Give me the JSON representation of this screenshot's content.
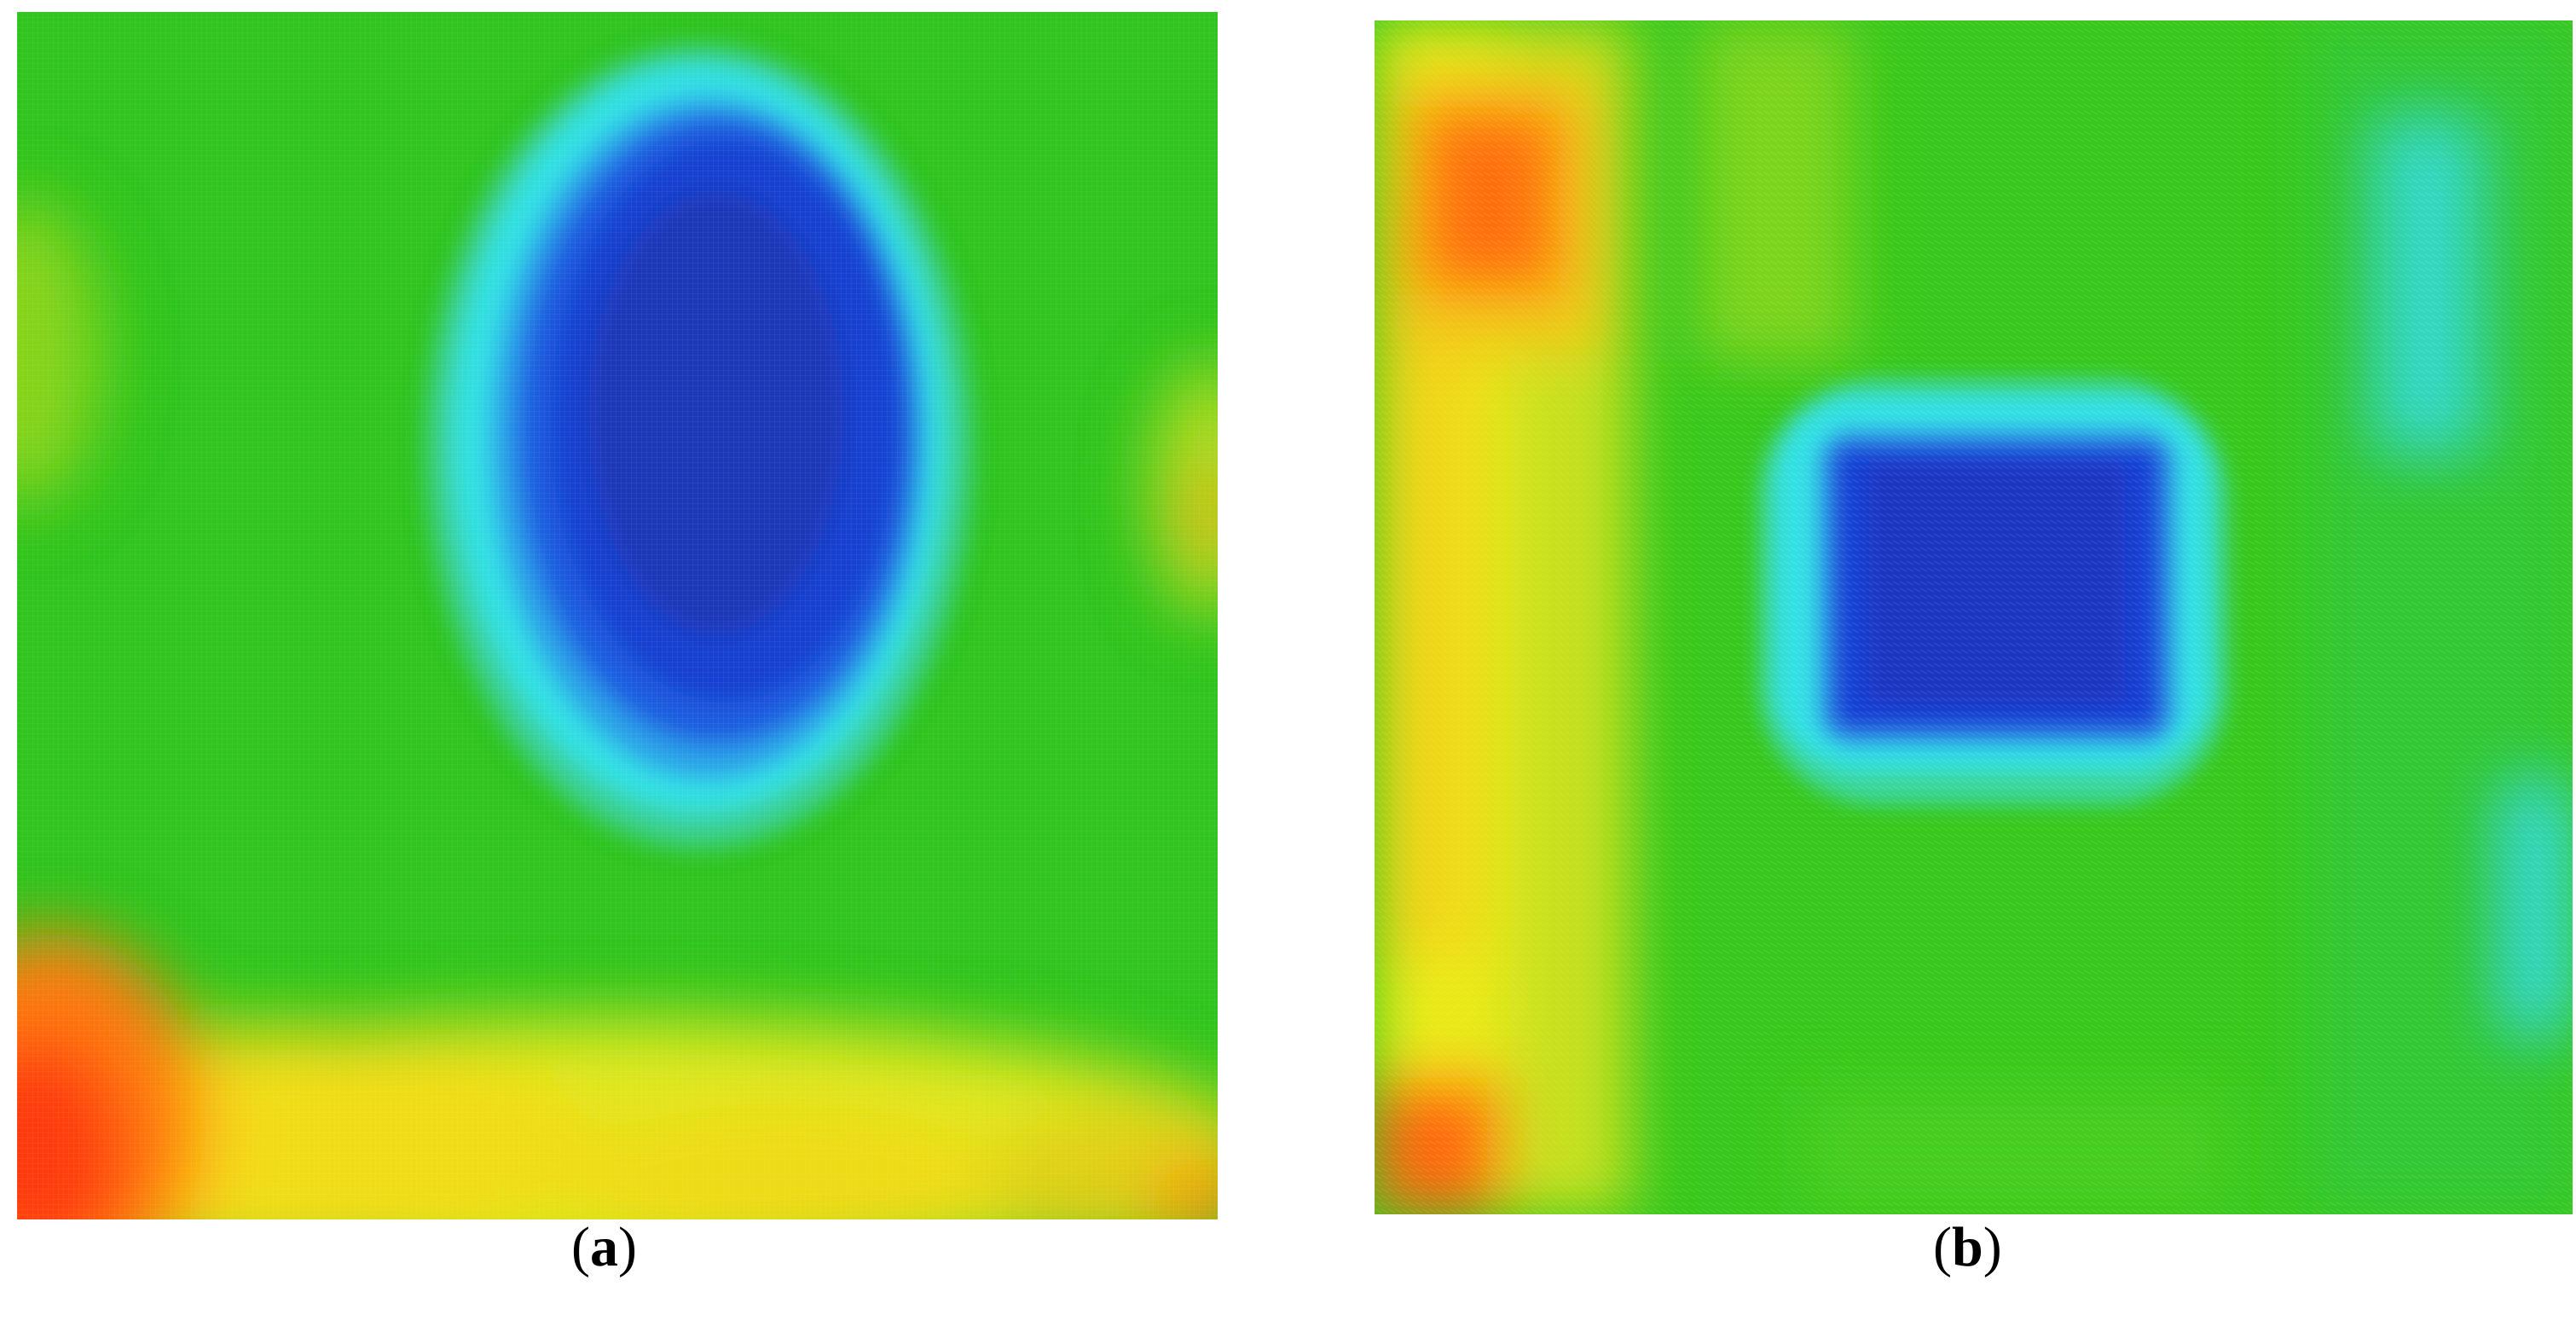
{
  "panels": [
    {
      "id": "a",
      "caption_open": "(",
      "caption_letter": "a",
      "caption_close": ")"
    },
    {
      "id": "b",
      "caption_open": "(",
      "caption_letter": "b",
      "caption_close": ")"
    }
  ],
  "colors": {
    "background": "#ffffff",
    "thermal_red": "#ff3a10",
    "thermal_orange": "#ff9a10",
    "thermal_yellow": "#e8f020",
    "thermal_green": "#22c81e",
    "thermal_cyan": "#30e0e8",
    "thermal_blue": "#1040d8",
    "thermal_dark_blue": "#1a32b8"
  }
}
